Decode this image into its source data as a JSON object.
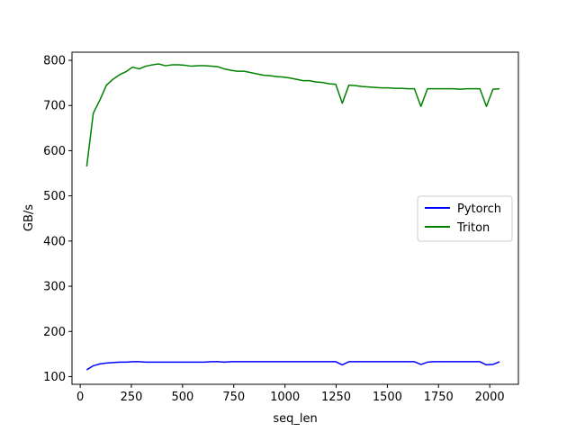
{
  "chart_data": {
    "type": "line",
    "title": "",
    "xlabel": "seq_len",
    "ylabel": "GB/s",
    "xlim": [
      -40,
      2140
    ],
    "ylim": [
      83,
      818
    ],
    "xticks": [
      0,
      250,
      500,
      750,
      1000,
      1250,
      1500,
      1750,
      2000
    ],
    "yticks": [
      100,
      200,
      300,
      400,
      500,
      600,
      700,
      800
    ],
    "grid": false,
    "legend_position": "center-right",
    "series": [
      {
        "name": "Pytorch",
        "color": "#0000ff",
        "points": [
          [
            32,
            115
          ],
          [
            64,
            124
          ],
          [
            96,
            128
          ],
          [
            128,
            130
          ],
          [
            160,
            131
          ],
          [
            192,
            132
          ],
          [
            224,
            132
          ],
          [
            256,
            133
          ],
          [
            288,
            133
          ],
          [
            320,
            132
          ],
          [
            352,
            132
          ],
          [
            384,
            132
          ],
          [
            416,
            132
          ],
          [
            448,
            132
          ],
          [
            480,
            132
          ],
          [
            512,
            132
          ],
          [
            544,
            132
          ],
          [
            576,
            132
          ],
          [
            608,
            132
          ],
          [
            640,
            133
          ],
          [
            672,
            133
          ],
          [
            704,
            132
          ],
          [
            736,
            133
          ],
          [
            768,
            133
          ],
          [
            800,
            133
          ],
          [
            832,
            133
          ],
          [
            864,
            133
          ],
          [
            896,
            133
          ],
          [
            928,
            133
          ],
          [
            960,
            133
          ],
          [
            992,
            133
          ],
          [
            1024,
            133
          ],
          [
            1056,
            133
          ],
          [
            1088,
            133
          ],
          [
            1120,
            133
          ],
          [
            1152,
            133
          ],
          [
            1184,
            133
          ],
          [
            1216,
            133
          ],
          [
            1248,
            133
          ],
          [
            1280,
            126
          ],
          [
            1312,
            133
          ],
          [
            1344,
            133
          ],
          [
            1376,
            133
          ],
          [
            1408,
            133
          ],
          [
            1440,
            133
          ],
          [
            1472,
            133
          ],
          [
            1504,
            133
          ],
          [
            1536,
            133
          ],
          [
            1568,
            133
          ],
          [
            1600,
            133
          ],
          [
            1632,
            133
          ],
          [
            1664,
            127
          ],
          [
            1696,
            132
          ],
          [
            1728,
            133
          ],
          [
            1760,
            133
          ],
          [
            1792,
            133
          ],
          [
            1824,
            133
          ],
          [
            1856,
            133
          ],
          [
            1888,
            133
          ],
          [
            1920,
            133
          ],
          [
            1952,
            133
          ],
          [
            1984,
            126
          ],
          [
            2016,
            127
          ],
          [
            2048,
            133
          ]
        ]
      },
      {
        "name": "Triton",
        "color": "#008000",
        "points": [
          [
            32,
            565
          ],
          [
            64,
            683
          ],
          [
            96,
            712
          ],
          [
            128,
            745
          ],
          [
            160,
            758
          ],
          [
            192,
            768
          ],
          [
            224,
            775
          ],
          [
            256,
            785
          ],
          [
            288,
            781
          ],
          [
            320,
            787
          ],
          [
            352,
            790
          ],
          [
            384,
            792
          ],
          [
            416,
            788
          ],
          [
            448,
            790
          ],
          [
            480,
            790
          ],
          [
            512,
            789
          ],
          [
            544,
            787
          ],
          [
            576,
            788
          ],
          [
            608,
            788
          ],
          [
            640,
            787
          ],
          [
            672,
            786
          ],
          [
            704,
            781
          ],
          [
            736,
            778
          ],
          [
            768,
            776
          ],
          [
            800,
            776
          ],
          [
            832,
            773
          ],
          [
            864,
            770
          ],
          [
            896,
            767
          ],
          [
            928,
            766
          ],
          [
            960,
            764
          ],
          [
            992,
            763
          ],
          [
            1024,
            761
          ],
          [
            1056,
            758
          ],
          [
            1088,
            755
          ],
          [
            1120,
            755
          ],
          [
            1152,
            752
          ],
          [
            1184,
            751
          ],
          [
            1216,
            748
          ],
          [
            1248,
            747
          ],
          [
            1280,
            705
          ],
          [
            1312,
            745
          ],
          [
            1344,
            744
          ],
          [
            1376,
            742
          ],
          [
            1408,
            741
          ],
          [
            1440,
            740
          ],
          [
            1472,
            739
          ],
          [
            1504,
            739
          ],
          [
            1536,
            738
          ],
          [
            1568,
            738
          ],
          [
            1600,
            737
          ],
          [
            1632,
            737
          ],
          [
            1664,
            698
          ],
          [
            1696,
            737
          ],
          [
            1728,
            737
          ],
          [
            1760,
            737
          ],
          [
            1792,
            737
          ],
          [
            1824,
            737
          ],
          [
            1856,
            736
          ],
          [
            1888,
            737
          ],
          [
            1920,
            737
          ],
          [
            1952,
            737
          ],
          [
            1984,
            698
          ],
          [
            2016,
            736
          ],
          [
            2048,
            737
          ]
        ]
      }
    ]
  }
}
